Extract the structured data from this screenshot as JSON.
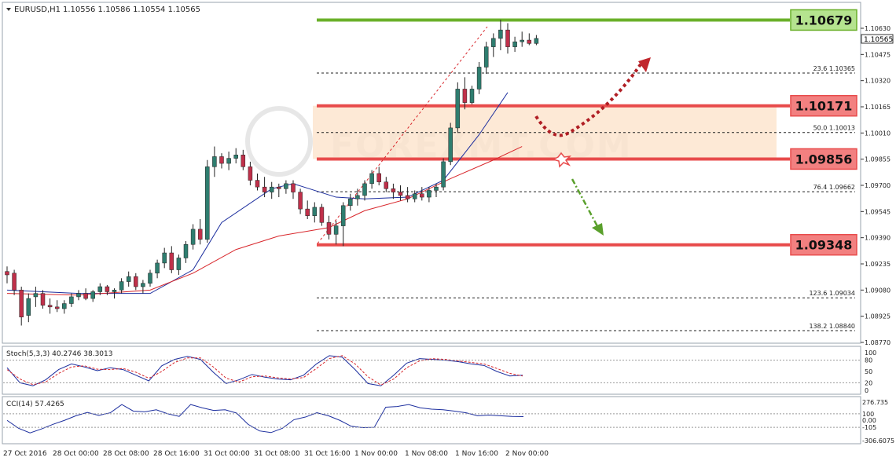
{
  "header": {
    "symbol": "EURUSD,H1",
    "ohlc": "1.10556 1.10586 1.10554 1.10565"
  },
  "indicators": {
    "stoch_label": "Stoch(5,3,3) 40.2746 38.3013",
    "cci_label": "CCI(14) 57.4265"
  },
  "watermark": "FOREXMT.COM",
  "colors": {
    "bull": "#2e7d6f",
    "bear": "#c0304a",
    "ma_fast": "#1c2e9e",
    "ma_slow": "#d8262b",
    "level_red": "#e84b4b",
    "level_green": "#6ab02a",
    "zone": "#fde3cc",
    "fib_line": "#222222",
    "stoch_main": "#1c2e9e",
    "stoch_signal": "#d8262b",
    "cci": "#1c2e9e"
  },
  "chart_data": {
    "type": "candlestick",
    "price_axis": {
      "min": 1.0875,
      "max": 1.1072,
      "ticks": [
        "1.10630",
        "1.10475",
        "1.10320",
        "1.10165",
        "1.10010",
        "1.09855",
        "1.09700",
        "1.09545",
        "1.09390",
        "1.09235",
        "1.09080",
        "1.08925",
        "1.08770"
      ],
      "current_price": "1.10565"
    },
    "time_axis": {
      "labels": [
        "27 Oct 2016",
        "28 Oct 00:00",
        "28 Oct 08:00",
        "28 Oct 16:00",
        "31 Oct 00:00",
        "31 Oct 08:00",
        "31 Oct 16:00",
        "1 Nov 00:00",
        "1 Nov 08:00",
        "1 Nov 16:00",
        "2 Nov 00:00"
      ]
    },
    "levels": [
      {
        "label": "1.10679",
        "value": 1.10679,
        "color": "green"
      },
      {
        "label": "1.10171",
        "value": 1.10171,
        "color": "red"
      },
      {
        "label": "1.09856",
        "value": 1.09856,
        "color": "red"
      },
      {
        "label": "1.09348",
        "value": 1.09348,
        "color": "red"
      }
    ],
    "fibonacci": [
      {
        "ratio": "23.6",
        "price": "1.10365",
        "value": 1.10365
      },
      {
        "ratio": "50.0",
        "price": "1.10013",
        "value": 1.10013
      },
      {
        "ratio": "76.4",
        "price": "1.09662",
        "value": 1.09662
      },
      {
        "ratio": "123.6",
        "price": "1.09034",
        "value": 1.09034
      },
      {
        "ratio": "138.2",
        "price": "1.08840",
        "value": 1.0884
      }
    ],
    "zone": {
      "from": 1.09856,
      "to": 1.10171
    },
    "candles": [
      [
        1.0919,
        1.0922,
        1.0912,
        1.0917
      ],
      [
        1.0918,
        1.092,
        1.0905,
        1.0908
      ],
      [
        1.0908,
        1.091,
        1.0887,
        1.0892
      ],
      [
        1.0893,
        1.0906,
        1.0889,
        1.0903
      ],
      [
        1.0904,
        1.091,
        1.0898,
        1.0906
      ],
      [
        1.0906,
        1.0908,
        1.0897,
        1.0899
      ],
      [
        1.0899,
        1.0903,
        1.0894,
        1.0898
      ],
      [
        1.0898,
        1.0902,
        1.0895,
        1.0897
      ],
      [
        1.0897,
        1.0902,
        1.0894,
        1.09
      ],
      [
        1.09,
        1.0906,
        1.0898,
        1.0904
      ],
      [
        1.0904,
        1.0908,
        1.0902,
        1.0906
      ],
      [
        1.0906,
        1.0909,
        1.0902,
        1.0903
      ],
      [
        1.0903,
        1.0908,
        1.0901,
        1.0907
      ],
      [
        1.0907,
        1.0912,
        1.0905,
        1.091
      ],
      [
        1.091,
        1.0911,
        1.0905,
        1.0907
      ],
      [
        1.0907,
        1.0909,
        1.0903,
        1.0908
      ],
      [
        1.0908,
        1.0915,
        1.0906,
        1.0913
      ],
      [
        1.0913,
        1.0919,
        1.091,
        1.0916
      ],
      [
        1.0916,
        1.0918,
        1.0908,
        1.091
      ],
      [
        1.091,
        1.0914,
        1.0906,
        1.0912
      ],
      [
        1.0912,
        1.092,
        1.091,
        1.0918
      ],
      [
        1.0918,
        1.0926,
        1.0915,
        1.0924
      ],
      [
        1.0924,
        1.0933,
        1.0921,
        1.093
      ],
      [
        1.093,
        1.0934,
        1.0918,
        1.092
      ],
      [
        1.092,
        1.0929,
        1.0917,
        1.0927
      ],
      [
        1.0927,
        1.0937,
        1.0924,
        1.0935
      ],
      [
        1.0935,
        1.0947,
        1.0932,
        1.0944
      ],
      [
        1.0944,
        1.095,
        1.0935,
        1.0938
      ],
      [
        1.0938,
        1.0985,
        1.0936,
        1.0981
      ],
      [
        1.0981,
        1.0993,
        1.0975,
        1.0987
      ],
      [
        1.0987,
        1.0989,
        1.098,
        1.0983
      ],
      [
        1.0983,
        1.099,
        1.0979,
        1.0986
      ],
      [
        1.0986,
        1.0992,
        1.0983,
        1.0988
      ],
      [
        1.0988,
        1.0991,
        1.0979,
        1.0981
      ],
      [
        1.0981,
        1.0984,
        1.097,
        1.0973
      ],
      [
        1.0973,
        1.0977,
        1.0967,
        1.0969
      ],
      [
        1.0969,
        1.0975,
        1.0963,
        1.0966
      ],
      [
        1.0966,
        1.0972,
        1.0962,
        1.0969
      ],
      [
        1.0969,
        1.0971,
        1.0963,
        1.0968
      ],
      [
        1.0968,
        1.0973,
        1.0965,
        1.0971
      ],
      [
        1.0971,
        1.0973,
        1.0962,
        1.0966
      ],
      [
        1.0966,
        1.0968,
        1.0953,
        1.0956
      ],
      [
        1.0956,
        1.0961,
        1.095,
        1.0952
      ],
      [
        1.0952,
        1.096,
        1.0948,
        1.0957
      ],
      [
        1.0957,
        1.0959,
        1.0946,
        1.0948
      ],
      [
        1.0948,
        1.0952,
        1.0938,
        1.0941
      ],
      [
        1.0941,
        1.0949,
        1.0935,
        1.0946
      ],
      [
        1.0946,
        1.096,
        1.0934,
        1.0958
      ],
      [
        1.0958,
        1.0965,
        1.0955,
        1.0962
      ],
      [
        1.0962,
        1.0968,
        1.0958,
        1.0964
      ],
      [
        1.0964,
        1.0973,
        1.0961,
        1.0971
      ],
      [
        1.0971,
        1.0979,
        1.0968,
        1.0977
      ],
      [
        1.0977,
        1.0981,
        1.097,
        1.0972
      ],
      [
        1.0972,
        1.0975,
        1.0966,
        1.0968
      ],
      [
        1.0968,
        1.0971,
        1.0962,
        1.0966
      ],
      [
        1.0966,
        1.097,
        1.0961,
        1.0964
      ],
      [
        1.0964,
        1.0969,
        1.096,
        1.0962
      ],
      [
        1.0962,
        1.0967,
        1.096,
        1.0965
      ],
      [
        1.0965,
        1.0969,
        1.0961,
        1.0963
      ],
      [
        1.0963,
        1.0969,
        1.096,
        1.0967
      ],
      [
        1.0967,
        1.0971,
        1.0963,
        1.0969
      ],
      [
        1.0969,
        1.0986,
        1.0967,
        1.0984
      ],
      [
        1.0984,
        1.1007,
        1.0982,
        1.1004
      ],
      [
        1.1004,
        1.1031,
        1.1001,
        1.1027
      ],
      [
        1.1027,
        1.1034,
        1.1015,
        1.1019
      ],
      [
        1.1019,
        1.1029,
        1.1018,
        1.1027
      ],
      [
        1.1027,
        1.1043,
        1.1024,
        1.104
      ],
      [
        1.104,
        1.1055,
        1.1036,
        1.1052
      ],
      [
        1.1052,
        1.106,
        1.1046,
        1.1057
      ],
      [
        1.1057,
        1.1068,
        1.105,
        1.1062
      ],
      [
        1.1062,
        1.1066,
        1.1048,
        1.1052
      ],
      [
        1.1052,
        1.1058,
        1.1049,
        1.1055
      ],
      [
        1.1055,
        1.1061,
        1.1052,
        1.1056
      ],
      [
        1.1056,
        1.106,
        1.1053,
        1.1054
      ],
      [
        1.1054,
        1.1059,
        1.1053,
        1.1057
      ]
    ],
    "ma_fast": [
      [
        0,
        1.0908
      ],
      [
        10,
        1.0906
      ],
      [
        20,
        1.0906
      ],
      [
        26,
        1.092
      ],
      [
        30,
        1.0948
      ],
      [
        37,
        1.0968
      ],
      [
        40,
        1.0971
      ],
      [
        46,
        1.0963
      ],
      [
        50,
        1.0962
      ],
      [
        56,
        1.0963
      ],
      [
        61,
        1.0973
      ],
      [
        66,
        1.1
      ],
      [
        70,
        1.1025
      ]
    ],
    "ma_slow": [
      [
        0,
        1.0906
      ],
      [
        10,
        1.0905
      ],
      [
        20,
        1.0908
      ],
      [
        26,
        1.0918
      ],
      [
        32,
        1.0932
      ],
      [
        38,
        1.094
      ],
      [
        45,
        1.0945
      ],
      [
        50,
        1.0955
      ],
      [
        56,
        1.0962
      ],
      [
        62,
        1.0974
      ],
      [
        68,
        1.0985
      ],
      [
        72,
        1.0993
      ]
    ],
    "stochastic": {
      "label": "Stoch(5,3,3) 40.2746 38.3013",
      "range": [
        0,
        100
      ],
      "ticks": [
        "100",
        "80",
        "50",
        "20",
        "0"
      ],
      "main": [
        60,
        20,
        12,
        28,
        55,
        70,
        62,
        52,
        60,
        55,
        40,
        25,
        65,
        82,
        90,
        82,
        48,
        18,
        28,
        42,
        35,
        30,
        28,
        40,
        70,
        92,
        88,
        55,
        18,
        12,
        40,
        72,
        84,
        82,
        80,
        76,
        70,
        66,
        50,
        38,
        40
      ],
      "signal": [
        55,
        30,
        15,
        22,
        45,
        62,
        65,
        56,
        55,
        58,
        48,
        32,
        50,
        74,
        86,
        86,
        62,
        32,
        22,
        36,
        38,
        33,
        30,
        34,
        58,
        84,
        92,
        70,
        36,
        14,
        30,
        60,
        78,
        84,
        82,
        78,
        74,
        70,
        58,
        45,
        38
      ]
    },
    "cci": {
      "label": "CCI(14) 57.4265",
      "ticks": [
        "276.735",
        "100",
        "0.00",
        "-105",
        "-306.6075"
      ],
      "range": [
        -306.6075,
        276.735
      ],
      "values": [
        0,
        -120,
        -190,
        -130,
        -60,
        0,
        70,
        120,
        75,
        115,
        240,
        140,
        130,
        160,
        100,
        60,
        240,
        190,
        150,
        160,
        110,
        -60,
        -160,
        -185,
        -120,
        10,
        50,
        115,
        70,
        0,
        -90,
        -110,
        -105,
        200,
        210,
        240,
        190,
        170,
        160,
        140,
        115,
        70,
        80,
        70,
        60,
        57
      ]
    },
    "annotations": [
      {
        "type": "arrow",
        "direction": "up",
        "color": "#c1272d",
        "from": "1.10171 zone",
        "label": ""
      },
      {
        "type": "arrow",
        "direction": "down",
        "color": "#5aa02c",
        "from": "1.09856",
        "label": ""
      }
    ]
  }
}
